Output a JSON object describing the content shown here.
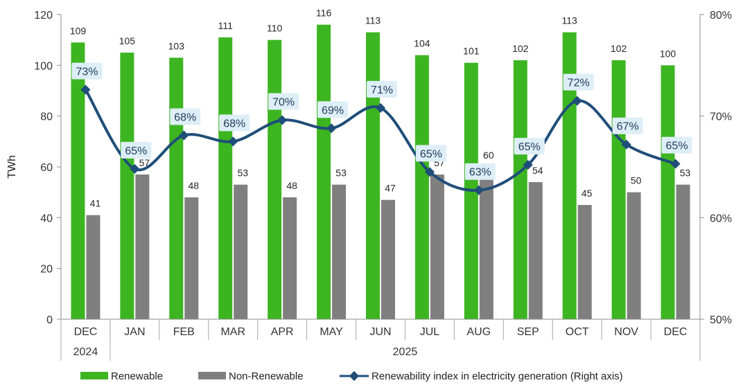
{
  "chart_data": {
    "type": "bar",
    "categories": [
      "DEC",
      "JAN",
      "FEB",
      "MAR",
      "APR",
      "MAY",
      "JUN",
      "JUL",
      "AUG",
      "SEP",
      "OCT",
      "NOV",
      "DEC"
    ],
    "year_labels": [
      "2024",
      "2025"
    ],
    "series": [
      {
        "name": "Renewable",
        "type": "bar",
        "axis": "left",
        "color": "#3cb521",
        "values": [
          109,
          105,
          103,
          111,
          110,
          116,
          113,
          104,
          101,
          102,
          113,
          102,
          100
        ]
      },
      {
        "name": "Non-Renewable",
        "type": "bar",
        "axis": "left",
        "color": "#7f7f7f",
        "values": [
          41,
          57,
          48,
          53,
          48,
          53,
          47,
          57,
          60,
          54,
          45,
          50,
          53
        ]
      },
      {
        "name": "Renewability index in electricity generation (Right axis)",
        "type": "line",
        "axis": "right",
        "color": "#1f4e79",
        "values": [
          72.6,
          64.8,
          68.1,
          67.5,
          69.6,
          68.8,
          70.8,
          64.5,
          62.7,
          65.2,
          71.5,
          67.2,
          65.3
        ],
        "labels": [
          "73%",
          "65%",
          "68%",
          "68%",
          "70%",
          "69%",
          "71%",
          "65%",
          "63%",
          "65%",
          "72%",
          "67%",
          "65%"
        ]
      }
    ],
    "ylabel": "TWh",
    "ylim": [
      0,
      120
    ],
    "yticks": [
      0,
      20,
      40,
      60,
      80,
      100,
      120
    ],
    "y2lim": [
      50,
      80
    ],
    "y2ticks": [
      "50%",
      "60%",
      "70%",
      "80%"
    ],
    "legend_position": "bottom"
  }
}
